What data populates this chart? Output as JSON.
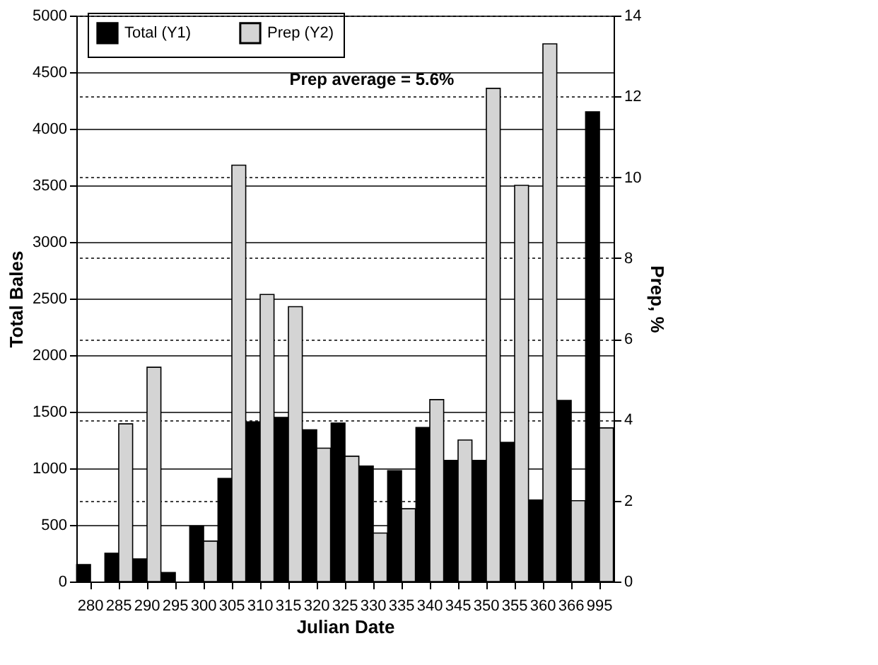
{
  "chart_data": {
    "type": "bar",
    "xlabel": "Julian Date",
    "ylabel": "Total Bales",
    "y2label": "Prep, %",
    "categories": [
      "280",
      "285",
      "290",
      "295",
      "300",
      "305",
      "310",
      "315",
      "320",
      "325",
      "330",
      "335",
      "340",
      "345",
      "350",
      "355",
      "360",
      "366",
      "995"
    ],
    "series": [
      {
        "name": "Total (Y1)",
        "color": "#000000",
        "values": [
          150,
          250,
          200,
          80,
          490,
          910,
          1410,
          1450,
          1340,
          1400,
          1020,
          980,
          1360,
          1070,
          1070,
          1230,
          720,
          1600,
          4150
        ]
      },
      {
        "name": "Prep (Y2)",
        "color": "#d4d4d4",
        "axis": "y2",
        "values": [
          null,
          3.9,
          5.3,
          null,
          1.0,
          10.3,
          7.1,
          6.8,
          3.3,
          3.1,
          1.2,
          1.8,
          4.5,
          3.5,
          12.2,
          9.8,
          13.3,
          2.0,
          3.8
        ]
      }
    ],
    "ylim": [
      0,
      5000
    ],
    "yticks": [
      0,
      500,
      1000,
      1500,
      2000,
      2500,
      3000,
      3500,
      4000,
      4500,
      5000
    ],
    "y2lim": [
      0,
      14
    ],
    "y2ticks": [
      0,
      2,
      4,
      6,
      8,
      10,
      12,
      14
    ],
    "grid": true,
    "legend": "top",
    "annotations": [
      "Prep average = 5.6%"
    ]
  }
}
